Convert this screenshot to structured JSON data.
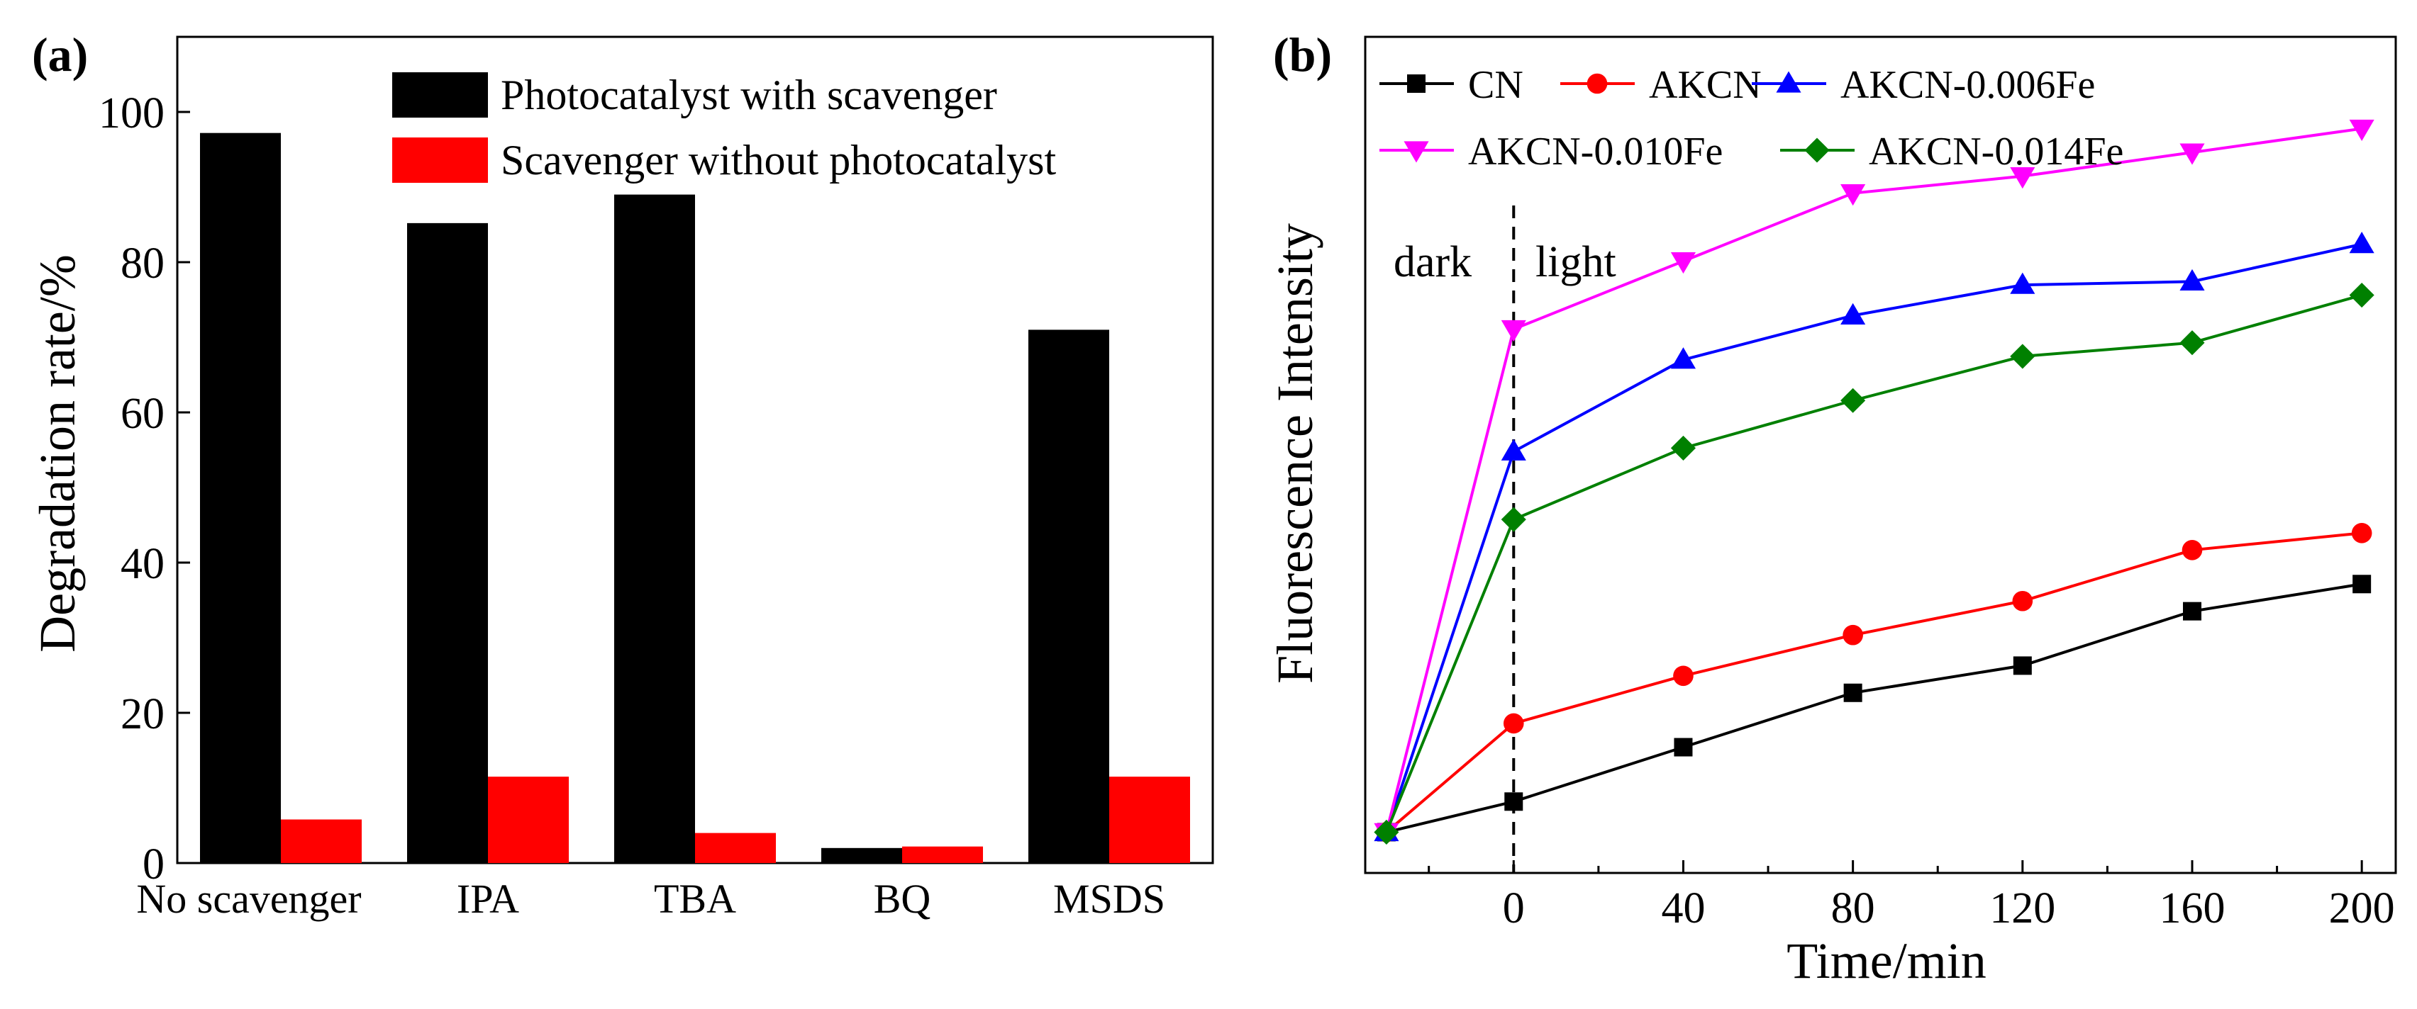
{
  "chart_data": [
    {
      "panel_label": "(a)",
      "type": "bar",
      "xlabel": "",
      "ylabel": "Degradation rate/%",
      "ylim": [
        0,
        110
      ],
      "yticks": [
        0,
        20,
        40,
        60,
        80,
        100
      ],
      "categories": [
        "No scavenger",
        "IPA",
        "TBA",
        "BQ",
        "MSDS"
      ],
      "legend_position": "top-right",
      "series": [
        {
          "name": "Photocatalyst with scavenger",
          "color": "#000000",
          "values": [
            97.2,
            85.2,
            89.0,
            2.0,
            71.0
          ]
        },
        {
          "name": "Scavenger without photocatalyst",
          "color": "#ff0000",
          "values": [
            5.8,
            11.5,
            4.0,
            2.2,
            11.5
          ]
        }
      ]
    },
    {
      "panel_label": "(b)",
      "type": "line",
      "xlabel": "Time/min",
      "ylabel": "Fluorescence Intensity",
      "xlim": [
        -35,
        208
      ],
      "ylim": [
        -0.6,
        11.7
      ],
      "xticks": [
        0,
        40,
        80,
        120,
        160,
        200
      ],
      "x": [
        -30,
        0,
        40,
        80,
        120,
        160,
        200
      ],
      "annotations": {
        "left": "dark",
        "right": "light",
        "divider_x": 0
      },
      "legend_position": "top",
      "series": [
        {
          "name": "CN",
          "color": "#000000",
          "marker": "square",
          "values": [
            0.0,
            0.45,
            1.25,
            2.05,
            2.45,
            3.25,
            3.65
          ]
        },
        {
          "name": "AKCN",
          "color": "#ff0000",
          "marker": "circle",
          "values": [
            0.0,
            1.6,
            2.3,
            2.9,
            3.4,
            4.15,
            4.4
          ]
        },
        {
          "name": "AKCN-0.006Fe",
          "color": "#0000ff",
          "marker": "triangle-up",
          "values": [
            0.0,
            5.6,
            6.95,
            7.6,
            8.05,
            8.1,
            8.65
          ]
        },
        {
          "name": "AKCN-0.010Fe",
          "color": "#ff00ff",
          "marker": "triangle-down",
          "values": [
            0.0,
            7.4,
            8.4,
            9.4,
            9.65,
            10.0,
            10.35
          ]
        },
        {
          "name": "AKCN-0.014Fe",
          "color": "#008000",
          "marker": "diamond",
          "values": [
            0.0,
            4.6,
            5.65,
            6.35,
            7.0,
            7.2,
            7.9
          ]
        }
      ]
    }
  ]
}
